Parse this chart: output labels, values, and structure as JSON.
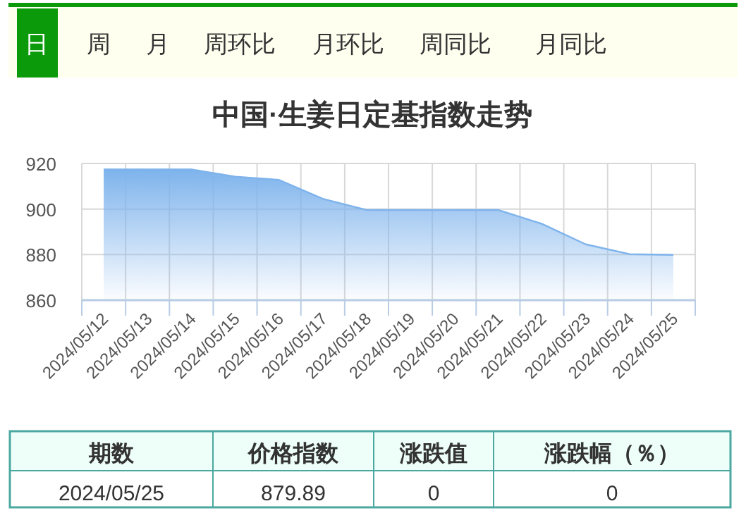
{
  "chart_data": [
    {
      "type": "other",
      "annotations": [
        "日",
        "周",
        "月",
        "周环比",
        "月环比",
        "周同比",
        "月同比"
      ]
    },
    {
      "type": "area",
      "title": "中国·生姜日定基指数走势",
      "categories": [
        "2024/05/12",
        "2024/05/13",
        "2024/05/14",
        "2024/05/15",
        "2024/05/16",
        "2024/05/17",
        "2024/05/18",
        "2024/05/19",
        "2024/05/20",
        "2024/05/21",
        "2024/05/22",
        "2024/05/23",
        "2024/05/24",
        "2024/05/25"
      ],
      "values": [
        917.4,
        917.4,
        917.4,
        914.2,
        912.8,
        904.5,
        899.6,
        899.6,
        899.6,
        899.6,
        893.5,
        884.5,
        880.2,
        879.89
      ],
      "color": "#7eb3ec",
      "ylim": [
        860,
        920
      ],
      "yticks": [
        860,
        880,
        900,
        920
      ],
      "grid": true
    },
    {
      "type": "other",
      "annotations": [
        "期数",
        "价格指数",
        "涨跌值",
        "涨跌幅（％）",
        "2024/05/25",
        "879.89",
        "0",
        "0"
      ]
    }
  ]
}
